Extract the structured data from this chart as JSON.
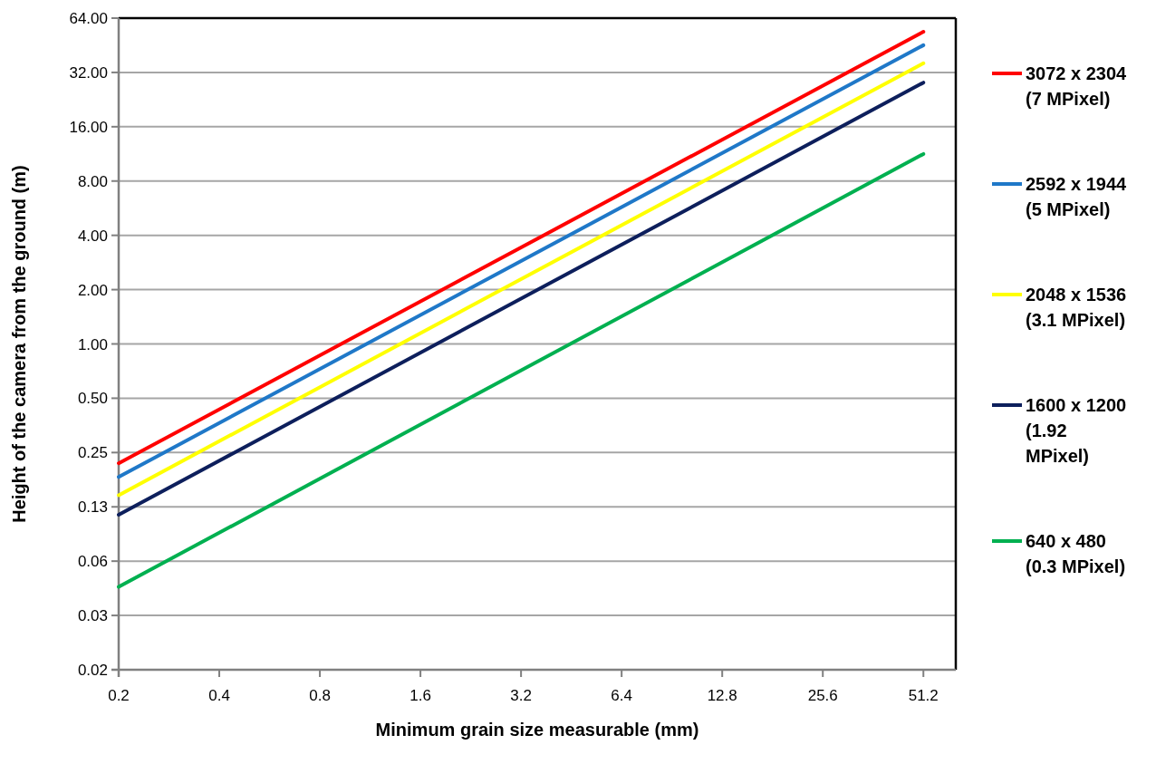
{
  "chart_data": {
    "type": "line",
    "xlabel": "Minimum grain size measurable (mm)",
    "ylabel": "Height of the camera from the ground (m)",
    "log": "xy",
    "grid": "y",
    "legend": "right",
    "marker": "none",
    "line_style": "solid",
    "xlim": [
      0.2,
      64
    ],
    "xticks": [
      0.2,
      0.4,
      0.8,
      1.6,
      3.2,
      6.4,
      12.8,
      25.6,
      51.2
    ],
    "ylim": [
      0.015625,
      64
    ],
    "yticks": [
      {
        "value": 0.015625,
        "label": "0.02"
      },
      {
        "value": 0.03125,
        "label": "0.03"
      },
      {
        "value": 0.0625,
        "label": "0.06"
      },
      {
        "value": 0.125,
        "label": "0.13"
      },
      {
        "value": 0.25,
        "label": "0.25"
      },
      {
        "value": 0.5,
        "label": "0.50"
      },
      {
        "value": 1,
        "label": "1.00"
      },
      {
        "value": 2,
        "label": "2.00"
      },
      {
        "value": 4,
        "label": "4.00"
      },
      {
        "value": 8,
        "label": "8.00"
      },
      {
        "value": 16,
        "label": "16.00"
      },
      {
        "value": 32,
        "label": "32.00"
      },
      {
        "value": 64,
        "label": "64.00"
      }
    ],
    "x": [
      0.2,
      51.2
    ],
    "series": [
      {
        "name": "3072 x 2304 (7 MPixel)",
        "color": "#ff0000",
        "values": [
          0.218,
          53.8
        ]
      },
      {
        "name": "2592 x 1944 (5 MPixel)",
        "color": "#1f78c8",
        "values": [
          0.183,
          45.3
        ]
      },
      {
        "name": "2048 x 1536 (3.1 MPixel)",
        "color": "#ffff00",
        "values": [
          0.145,
          36
        ]
      },
      {
        "name": "1600 x 1200 (1.92 MPixel)",
        "color": "#0d1f5c",
        "values": [
          0.113,
          28.1
        ]
      },
      {
        "name": "640 x 480 (0.3 MPixel)",
        "color": "#00b050",
        "values": [
          0.045,
          11.3
        ]
      }
    ]
  }
}
